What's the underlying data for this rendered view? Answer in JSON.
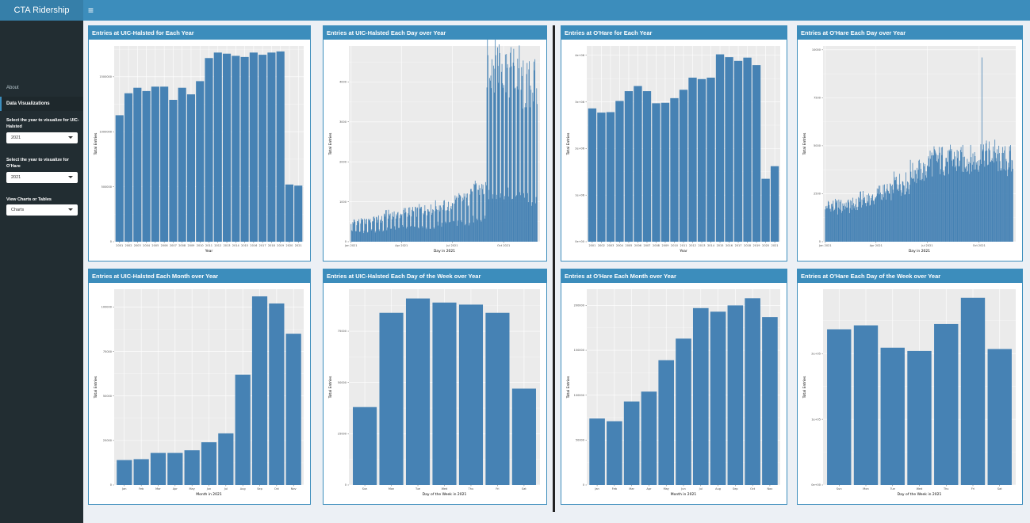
{
  "app": {
    "title": "CTA Ridership",
    "menu_icon": "hamburger-icon"
  },
  "sidebar": {
    "items": [
      {
        "label": "About"
      },
      {
        "label": "Data Visualizations"
      }
    ],
    "controls": [
      {
        "label": "Select the year to visualize for UIC-Halsted",
        "value": "2021"
      },
      {
        "label": "Select the year to visualize for O'Hare",
        "value": "2021"
      },
      {
        "label": "View Charts or Tables",
        "value": "Charts"
      }
    ]
  },
  "colors": {
    "bar": "#4682b4",
    "header": "#3c8dbc",
    "sidebar": "#222d32"
  },
  "chart_data": [
    {
      "type": "bar",
      "title": "Entries at UIC-Halsted for Each Year",
      "xlabel": "Year",
      "ylabel": "Total Entries",
      "categories": [
        "2001",
        "2002",
        "2003",
        "2004",
        "2005",
        "2006",
        "2007",
        "2008",
        "2009",
        "2010",
        "2011",
        "2012",
        "2013",
        "2014",
        "2015",
        "2016",
        "2017",
        "2018",
        "2019",
        "2020",
        "2021"
      ],
      "values": [
        1150000,
        1350000,
        1400000,
        1370000,
        1410000,
        1410000,
        1290000,
        1400000,
        1340000,
        1460000,
        1670000,
        1720000,
        1710000,
        1690000,
        1680000,
        1720000,
        1700000,
        1720000,
        1730000,
        520000,
        510000
      ],
      "yticks": [
        0,
        500000,
        1000000,
        1500000
      ],
      "ytick_labels": [
        "0",
        "500000",
        "1000000",
        "1500000"
      ],
      "ylim": [
        0,
        1780000
      ]
    },
    {
      "type": "bar",
      "title": "Entries at UIC-Halsted Each Day over Year",
      "xlabel": "Day in 2021",
      "ylabel": "Total Entries",
      "x_range": [
        "2021-01-01",
        "2021-11-30"
      ],
      "daily_profile": [
        {
          "month": "Jan",
          "weekday": 500,
          "weekend": 260
        },
        {
          "month": "Feb",
          "weekday": 560,
          "weekend": 270
        },
        {
          "month": "Mar",
          "weekday": 680,
          "weekend": 330
        },
        {
          "month": "Apr",
          "weekday": 750,
          "weekend": 360
        },
        {
          "month": "May",
          "weekday": 800,
          "weekend": 380
        },
        {
          "month": "Jun",
          "weekday": 900,
          "weekend": 430
        },
        {
          "month": "Jul",
          "weekday": 1050,
          "weekend": 480
        },
        {
          "month": "Aug",
          "weekday": 1300,
          "weekend": 560
        },
        {
          "month": "Sep",
          "weekday": 4550,
          "weekend": 1200
        },
        {
          "month": "Oct",
          "weekday": 4250,
          "weekend": 1150
        },
        {
          "month": "Nov",
          "weekday": 3900,
          "weekend": 1050
        }
      ],
      "peak": 4700,
      "xticks": [
        "Jan 2021",
        "Apr 2021",
        "Jul 2021",
        "Oct 2021"
      ],
      "yticks": [
        0,
        1000,
        2000,
        3000,
        4000
      ],
      "ytick_labels": [
        "0",
        "1000",
        "2000",
        "3000",
        "4000"
      ],
      "ylim": [
        0,
        4900
      ]
    },
    {
      "type": "bar",
      "title": "Entries at O'Hare for Each Year",
      "xlabel": "Year",
      "ylabel": "Total Entries",
      "categories": [
        "2001",
        "2002",
        "2003",
        "2004",
        "2005",
        "2006",
        "2007",
        "2008",
        "2009",
        "2010",
        "2011",
        "2012",
        "2013",
        "2014",
        "2015",
        "2016",
        "2017",
        "2018",
        "2019",
        "2020",
        "2021"
      ],
      "values": [
        2860000,
        2770000,
        2780000,
        3020000,
        3230000,
        3340000,
        3230000,
        2970000,
        2980000,
        3080000,
        3260000,
        3520000,
        3490000,
        3520000,
        4020000,
        3960000,
        3880000,
        3950000,
        3790000,
        1350000,
        1620000
      ],
      "yticks": [
        0,
        1000000,
        2000000,
        3000000,
        4000000
      ],
      "ytick_labels": [
        "0e+00",
        "1e+06",
        "2e+06",
        "3e+06",
        "4e+06"
      ],
      "ylim": [
        0,
        4200000
      ]
    },
    {
      "type": "bar",
      "title": "Entries at O'Hare Each Day over Year",
      "xlabel": "Day in 2021",
      "ylabel": "Total Entries",
      "x_range": [
        "2021-01-01",
        "2021-11-30"
      ],
      "daily_profile": [
        {
          "month": "Jan",
          "weekday": 1900,
          "weekend": 1700
        },
        {
          "month": "Feb",
          "weekday": 1950,
          "weekend": 1750
        },
        {
          "month": "Mar",
          "weekday": 2250,
          "weekend": 2050
        },
        {
          "month": "Apr",
          "weekday": 2600,
          "weekend": 2400
        },
        {
          "month": "May",
          "weekday": 3100,
          "weekend": 2900
        },
        {
          "month": "Jun",
          "weekday": 3700,
          "weekend": 3500
        },
        {
          "month": "Jul",
          "weekday": 4300,
          "weekend": 4100
        },
        {
          "month": "Aug",
          "weekday": 4300,
          "weekend": 4100
        },
        {
          "month": "Sep",
          "weekday": 4300,
          "weekend": 4100
        },
        {
          "month": "Oct",
          "weekday": 4600,
          "weekend": 4300
        },
        {
          "month": "Nov",
          "weekday": 4300,
          "weekend": 4000
        }
      ],
      "peak": 9600,
      "xticks": [
        "Jan 2021",
        "Apr 2021",
        "Jul 2021",
        "Oct 2021"
      ],
      "yticks": [
        0,
        2500,
        5000,
        7500,
        10000
      ],
      "ytick_labels": [
        "0",
        "2500",
        "5000",
        "7500",
        "10000"
      ],
      "ylim": [
        0,
        10200
      ]
    },
    {
      "type": "bar",
      "title": "Entries at UIC-Halsted Each Month over Year",
      "xlabel": "Month in 2021",
      "ylabel": "Total Entries",
      "categories": [
        "Jan",
        "Feb",
        "Mar",
        "Apr",
        "May",
        "Jun",
        "Jul",
        "Aug",
        "Sep",
        "Oct",
        "Nov"
      ],
      "values": [
        14000,
        14500,
        18000,
        18000,
        19500,
        24000,
        29000,
        62000,
        106000,
        102000,
        85000
      ],
      "yticks": [
        0,
        25000,
        50000,
        75000,
        100000
      ],
      "ytick_labels": [
        "0",
        "25000",
        "50000",
        "75000",
        "100000"
      ],
      "ylim": [
        0,
        110000
      ]
    },
    {
      "type": "bar",
      "title": "Entries at UIC-Halsted Each Day of the Week over Year",
      "xlabel": "Day of the Week in 2021",
      "ylabel": "Total Entries",
      "categories": [
        "Sun",
        "Mon",
        "Tue",
        "Wed",
        "Thu",
        "Fri",
        "Sat"
      ],
      "values": [
        38000,
        84000,
        91000,
        89000,
        88000,
        84000,
        47000
      ],
      "yticks": [
        0,
        25000,
        50000,
        75000
      ],
      "ytick_labels": [
        "0",
        "25000",
        "50000",
        "75000"
      ],
      "ylim": [
        0,
        95500
      ]
    },
    {
      "type": "bar",
      "title": "Entries at O'Hare Each Month over Year",
      "xlabel": "Month in 2021",
      "ylabel": "Total Entries",
      "categories": [
        "Jan",
        "Feb",
        "Mar",
        "Apr",
        "May",
        "Jun",
        "Jul",
        "Aug",
        "Sep",
        "Oct",
        "Nov"
      ],
      "values": [
        74000,
        71000,
        93000,
        104000,
        139000,
        163000,
        197000,
        193000,
        200000,
        208000,
        187000
      ],
      "yticks": [
        0,
        50000,
        100000,
        150000,
        200000
      ],
      "ytick_labels": [
        "0",
        "50000",
        "100000",
        "150000",
        "200000"
      ],
      "ylim": [
        0,
        218000
      ]
    },
    {
      "type": "bar",
      "title": "Entries at O'Hare Each Day of the Week over Year",
      "xlabel": "Day of the Week in 2021",
      "ylabel": "Total Entries",
      "categories": [
        "Sun",
        "Mon",
        "Tue",
        "Wed",
        "Thu",
        "Fri",
        "Sat"
      ],
      "values": [
        237000,
        243000,
        209000,
        204000,
        245000,
        285000,
        207000
      ],
      "yticks": [
        0,
        100000,
        200000
      ],
      "ytick_labels": [
        "0e+00",
        "1e+05",
        "2e+05"
      ],
      "ylim": [
        0,
        298000
      ]
    }
  ]
}
